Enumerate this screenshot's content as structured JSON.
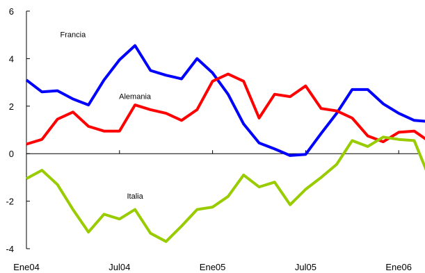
{
  "chart_data": {
    "type": "line",
    "title": "",
    "xlabel": "",
    "ylabel": "",
    "ylim": [
      -4,
      6
    ],
    "yticks": [
      -4,
      -2,
      0,
      2,
      4,
      6
    ],
    "ytick_labels": [
      "-4",
      "-2",
      "0",
      "2",
      "4",
      "6"
    ],
    "grid": false,
    "legend": "none (series labeled inline)",
    "x": [
      "2004-01",
      "2004-02",
      "2004-03",
      "2004-04",
      "2004-05",
      "2004-06",
      "2004-07",
      "2004-08",
      "2004-09",
      "2004-10",
      "2004-11",
      "2004-12",
      "2005-01",
      "2005-02",
      "2005-03",
      "2005-04",
      "2005-05",
      "2005-06",
      "2005-07",
      "2005-08",
      "2005-09",
      "2005-10",
      "2005-11",
      "2005-12",
      "2006-01",
      "2006-02",
      "2006-03",
      "2006-04"
    ],
    "xticks": [
      {
        "x": "2004-01",
        "label": "Ene04"
      },
      {
        "x": "2004-07",
        "label": "Jul04"
      },
      {
        "x": "2005-01",
        "label": "Ene05"
      },
      {
        "x": "2005-07",
        "label": "Jul05"
      },
      {
        "x": "2006-01",
        "label": "Ene06"
      }
    ],
    "series": [
      {
        "name": "Francia",
        "color": "#0000ff",
        "values": [
          3.1,
          2.6,
          2.65,
          2.3,
          2.05,
          3.1,
          3.95,
          4.55,
          3.5,
          3.3,
          3.15,
          4.0,
          3.4,
          2.5,
          1.25,
          0.45,
          0.2,
          -0.08,
          -0.03,
          0.85,
          1.7,
          2.7,
          2.7,
          2.1,
          1.7,
          1.4,
          1.35,
          1.7
        ]
      },
      {
        "name": "Alemania",
        "color": "#ff0000",
        "values": [
          0.4,
          0.6,
          1.45,
          1.75,
          1.15,
          0.95,
          0.95,
          2.05,
          1.85,
          1.7,
          1.4,
          1.85,
          3.05,
          3.35,
          3.05,
          1.5,
          2.5,
          2.4,
          2.85,
          1.9,
          1.8,
          1.5,
          0.75,
          0.5,
          0.9,
          0.95,
          0.5,
          0.8
        ]
      },
      {
        "name": "Italia",
        "color": "#99cc00",
        "values": [
          -1.05,
          -0.7,
          -1.3,
          -2.35,
          -3.3,
          -2.55,
          -2.75,
          -2.35,
          -3.35,
          -3.7,
          -3.05,
          -2.35,
          -2.25,
          -1.8,
          -0.9,
          -1.4,
          -1.2,
          -2.15,
          -1.5,
          -1.0,
          -0.45,
          0.55,
          0.3,
          0.7,
          0.6,
          0.55,
          -1.05,
          null
        ]
      }
    ],
    "annotations": [
      {
        "text": "Francia",
        "series": "Francia",
        "x": "2004-04",
        "y": 4.9
      },
      {
        "text": "Alemania",
        "series": "Alemania",
        "x": "2004-08",
        "y": 2.3
      },
      {
        "text": "Italia",
        "series": "Italia",
        "x": "2004-08",
        "y": -1.9
      }
    ]
  }
}
